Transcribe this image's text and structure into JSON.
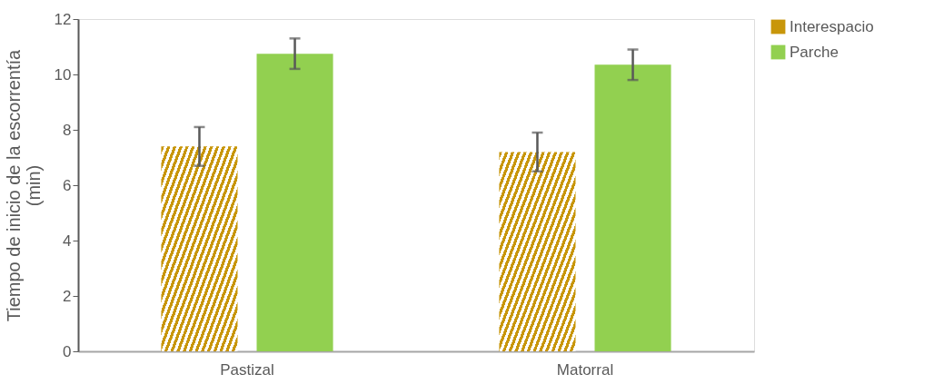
{
  "chart_data": {
    "type": "bar",
    "ylabel": "Tiempo de inicio de la escorrentía\n(min)",
    "categories": [
      "Pastizal",
      "Matorral"
    ],
    "series": [
      {
        "name": "Interespacio",
        "color": "#c8960a",
        "values": [
          7.4,
          7.2
        ],
        "errors": [
          0.7,
          0.7
        ]
      },
      {
        "name": "Parche",
        "color": "#92d050",
        "values": [
          10.75,
          10.35
        ],
        "errors": [
          0.55,
          0.55
        ]
      }
    ],
    "ylim": [
      0,
      12
    ],
    "yticks": [
      0,
      2,
      4,
      6,
      8,
      10,
      12
    ],
    "grid": false,
    "legend": "top right"
  }
}
